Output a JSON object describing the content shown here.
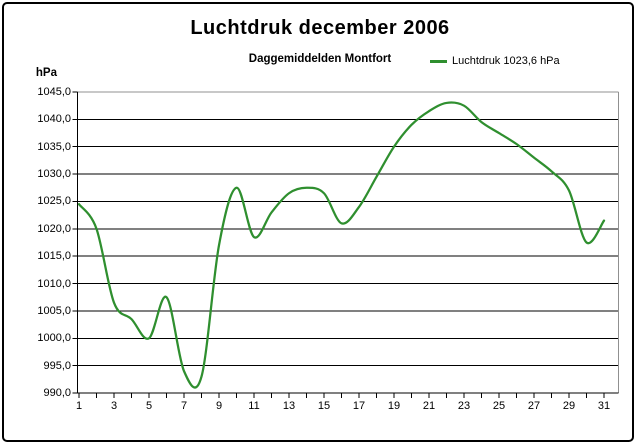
{
  "header": {
    "title": "Luchtdruk december 2006",
    "subtitle": "Daggemiddelden Montfort"
  },
  "legend": {
    "label": "Luchtdruk 1023,6 hPa",
    "line_color": "#2f8f2f"
  },
  "y_axis_unit": "hPa",
  "chart_data": {
    "type": "line",
    "title": "Luchtdruk december 2006",
    "subtitle": "Daggemiddelden Montfort",
    "xlabel": "",
    "ylabel": "hPa",
    "ylim": [
      990,
      1045
    ],
    "y_step": 5,
    "y_tick_labels": [
      "1045,0",
      "1040,0",
      "1035,0",
      "1030,0",
      "1025,0",
      "1020,0",
      "1015,0",
      "1010,0",
      "1005,0",
      "1000,0",
      "995,0",
      "990,0"
    ],
    "x": [
      1,
      2,
      3,
      4,
      5,
      6,
      7,
      8,
      9,
      10,
      11,
      12,
      13,
      14,
      15,
      16,
      17,
      18,
      19,
      20,
      21,
      22,
      23,
      24,
      25,
      26,
      27,
      28,
      29,
      30,
      31
    ],
    "x_tick_labels": [
      "1",
      "3",
      "5",
      "7",
      "9",
      "11",
      "13",
      "15",
      "17",
      "19",
      "21",
      "23",
      "25",
      "27",
      "29",
      "31"
    ],
    "grid": true,
    "smooth": true,
    "legend_position": "top-right",
    "series": [
      {
        "name": "Luchtdruk 1023,6 hPa",
        "color": "#2f8f2f",
        "values": [
          1024.5,
          1020,
          1006.5,
          1003.5,
          1000,
          1007.5,
          994,
          993,
          1017,
          1027.5,
          1018.5,
          1023,
          1026.5,
          1027.5,
          1026.5,
          1021,
          1024,
          1029.5,
          1035,
          1039,
          1041.5,
          1043,
          1042.5,
          1039.5,
          1037.5,
          1035.5,
          1033,
          1030.5,
          1027,
          1017.5,
          1021.5
        ]
      }
    ],
    "mean_value_shown_in_legend": "1023,6 hPa",
    "plot_border_color": "#909090",
    "grid_color": "#000000"
  }
}
